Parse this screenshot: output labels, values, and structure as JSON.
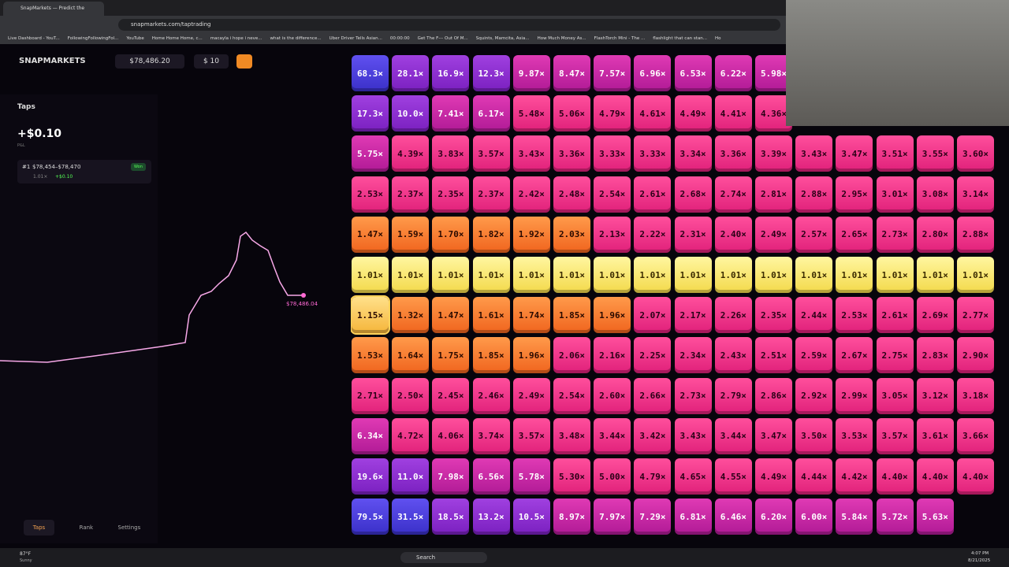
{
  "browser": {
    "tab_title": "SnapMarkets — Predict the",
    "url": "snapmarkets.com/taptrading",
    "bookmarks": [
      "Live Dashboard - YouT...",
      "FollowingFollowingFol...",
      "YouTube",
      "Home Home Home, c...",
      "macayla i hope i neve...",
      "what is the difference...",
      "Uber Driver Tells Asian...",
      "00:00:00",
      "Get The F--- Out Of M...",
      "Squints, Mamcita, Asia...",
      "How Much Money As...",
      "FlashTorch Mini - The ...",
      "flashlight that can stan...",
      "Ho"
    ]
  },
  "header": {
    "brand": "SNAPMARKETS",
    "balance": "$78,486.20",
    "bet": "$ 10"
  },
  "panel": {
    "title": "Taps",
    "pnl": "+$0.10",
    "pnl_label": "P&L",
    "entry": {
      "rank": "#1",
      "range": "$78,454–$78,470",
      "status": "Won",
      "multiplier": "1.01×",
      "profit": "+$0.10"
    },
    "tabs": [
      "Taps",
      "Rank",
      "Settings"
    ]
  },
  "price_label": "$78,486.04",
  "grid": {
    "rows": [
      [
        "68.3×",
        "28.1×",
        "16.9×",
        "12.3×",
        "9.87×",
        "8.47×",
        "7.57×",
        "6.96×",
        "6.53×",
        "6.22×",
        "5.98×"
      ],
      [
        "17.3×",
        "10.0×",
        "7.41×",
        "6.17×",
        "5.48×",
        "5.06×",
        "4.79×",
        "4.61×",
        "4.49×",
        "4.41×",
        "4.36×"
      ],
      [
        "5.75×",
        "4.39×",
        "3.83×",
        "3.57×",
        "3.43×",
        "3.36×",
        "3.33×",
        "3.33×",
        "3.34×",
        "3.36×",
        "3.39×",
        "3.43×",
        "3.47×",
        "3.51×",
        "3.55×",
        "3.60×"
      ],
      [
        "2.53×",
        "2.37×",
        "2.35×",
        "2.37×",
        "2.42×",
        "2.48×",
        "2.54×",
        "2.61×",
        "2.68×",
        "2.74×",
        "2.81×",
        "2.88×",
        "2.95×",
        "3.01×",
        "3.08×",
        "3.14×"
      ],
      [
        "1.47×",
        "1.59×",
        "1.70×",
        "1.82×",
        "1.92×",
        "2.03×",
        "2.13×",
        "2.22×",
        "2.31×",
        "2.40×",
        "2.49×",
        "2.57×",
        "2.65×",
        "2.73×",
        "2.80×",
        "2.88×"
      ],
      [
        "1.01×",
        "1.01×",
        "1.01×",
        "1.01×",
        "1.01×",
        "1.01×",
        "1.01×",
        "1.01×",
        "1.01×",
        "1.01×",
        "1.01×",
        "1.01×",
        "1.01×",
        "1.01×",
        "1.01×",
        "1.01×"
      ],
      [
        "1.15×",
        "1.32×",
        "1.47×",
        "1.61×",
        "1.74×",
        "1.85×",
        "1.96×",
        "2.07×",
        "2.17×",
        "2.26×",
        "2.35×",
        "2.44×",
        "2.53×",
        "2.61×",
        "2.69×",
        "2.77×"
      ],
      [
        "1.53×",
        "1.64×",
        "1.75×",
        "1.85×",
        "1.96×",
        "2.06×",
        "2.16×",
        "2.25×",
        "2.34×",
        "2.43×",
        "2.51×",
        "2.59×",
        "2.67×",
        "2.75×",
        "2.83×",
        "2.90×"
      ],
      [
        "2.71×",
        "2.50×",
        "2.45×",
        "2.46×",
        "2.49×",
        "2.54×",
        "2.60×",
        "2.66×",
        "2.73×",
        "2.79×",
        "2.86×",
        "2.92×",
        "2.99×",
        "3.05×",
        "3.12×",
        "3.18×"
      ],
      [
        "6.34×",
        "4.72×",
        "4.06×",
        "3.74×",
        "3.57×",
        "3.48×",
        "3.44×",
        "3.42×",
        "3.43×",
        "3.44×",
        "3.47×",
        "3.50×",
        "3.53×",
        "3.57×",
        "3.61×",
        "3.66×"
      ],
      [
        "19.6×",
        "11.0×",
        "7.98×",
        "6.56×",
        "5.78×",
        "5.30×",
        "5.00×",
        "4.79×",
        "4.65×",
        "4.55×",
        "4.49×",
        "4.44×",
        "4.42×",
        "4.40×",
        "4.40×",
        "4.40×"
      ],
      [
        "79.5×",
        "31.5×",
        "18.5×",
        "13.2×",
        "10.5×",
        "8.97×",
        "7.97×",
        "7.29×",
        "6.81×",
        "6.46×",
        "6.20×",
        "6.00×",
        "5.84×",
        "5.72×",
        "5.63×"
      ]
    ]
  },
  "taskbar": {
    "temp": "87°F",
    "weather": "Sunny",
    "search": "Search",
    "time": "4:07 PM",
    "date": "8/21/2025"
  }
}
